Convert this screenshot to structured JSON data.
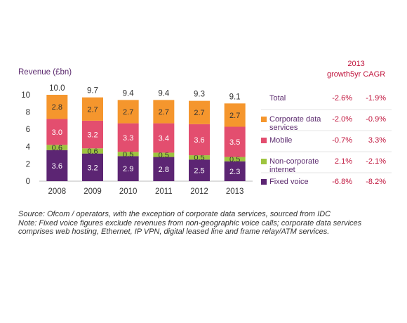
{
  "chart_data": {
    "type": "bar",
    "stacked": true,
    "ylabel": "Revenue (£bn)",
    "ylim": [
      0,
      10
    ],
    "yticks": [
      0,
      2,
      4,
      6,
      8,
      10
    ],
    "categories": [
      "2008",
      "2009",
      "2010",
      "2011",
      "2012",
      "2013"
    ],
    "totals": [
      "10.0",
      "9.7",
      "9.4",
      "9.4",
      "9.3",
      "9.1"
    ],
    "series": [
      {
        "name": "Fixed voice",
        "color": "#5c2573",
        "values": [
          3.6,
          3.2,
          2.9,
          2.8,
          2.5,
          2.3
        ]
      },
      {
        "name": "Non-corporate internet",
        "color": "#9ec43f",
        "values": [
          0.6,
          0.6,
          0.5,
          0.5,
          0.5,
          0.5
        ]
      },
      {
        "name": "Mobile",
        "color": "#e34e6f",
        "values": [
          3.0,
          3.2,
          3.3,
          3.4,
          3.6,
          3.5
        ]
      },
      {
        "name": "Corporate data services",
        "color": "#f5962d",
        "values": [
          2.8,
          2.7,
          2.7,
          2.7,
          2.7,
          2.7
        ]
      }
    ],
    "legend": {
      "total_label": "Total",
      "items": [
        {
          "label": "Corporate data services",
          "color": "#f5962d"
        },
        {
          "label": "Mobile",
          "color": "#e34e6f"
        },
        {
          "label": "Non-corporate internet",
          "color": "#9ec43f"
        },
        {
          "label": "Fixed voice",
          "color": "#5c2573"
        }
      ]
    },
    "growth_table": {
      "header_line1": "2013",
      "header_line2": "growth5yr CAGR",
      "rows": [
        {
          "label": "Total",
          "growth_2013": "-2.6%",
          "cagr_5yr": "-1.9%"
        },
        {
          "label": "Corporate data services",
          "growth_2013": "-2.0%",
          "cagr_5yr": "-0.9%"
        },
        {
          "label": "Mobile",
          "growth_2013": "-0.7%",
          "cagr_5yr": "3.3%"
        },
        {
          "label": "Non-corporate internet",
          "growth_2013": "2.1%",
          "cagr_5yr": "-2.1%"
        },
        {
          "label": "Fixed voice",
          "growth_2013": "-6.8%",
          "cagr_5yr": "-8.2%"
        }
      ]
    }
  },
  "notes": {
    "line1": "Source: Ofcom / operators, with the exception of corporate data services, sourced from IDC",
    "line2": "Note: Fixed voice figures exclude revenues from non-geographic voice calls; corporate data services",
    "line3": "comprises web hosting, Ethernet, IP VPN, digital leased line and frame relay/ATM services."
  }
}
